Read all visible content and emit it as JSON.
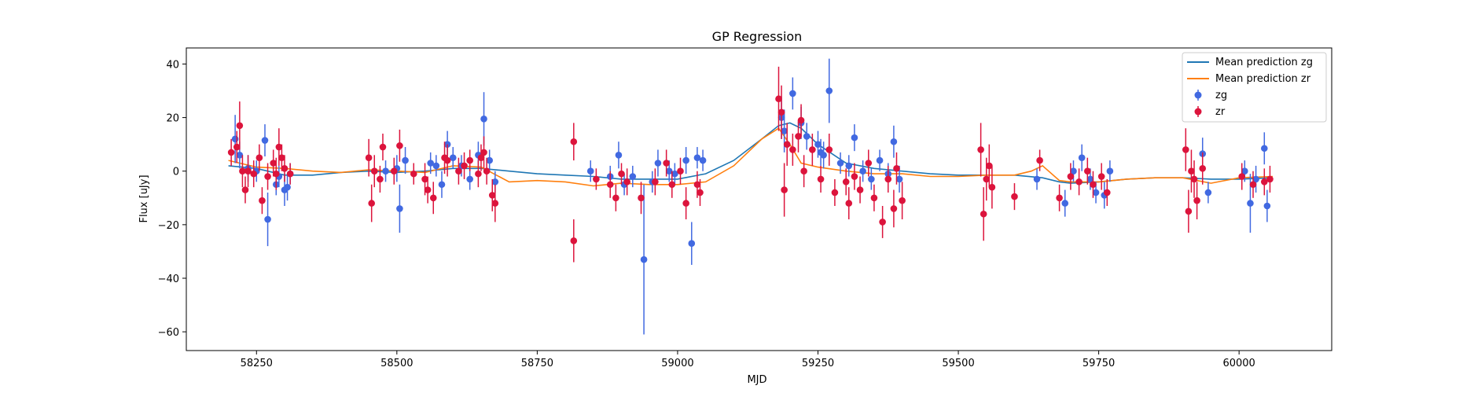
{
  "chart_data": {
    "type": "scatter",
    "title": "GP Regression",
    "xlabel": "MJD",
    "ylabel": "Flux [uJy]",
    "xlim": [
      58125,
      60165
    ],
    "ylim": [
      -67,
      46
    ],
    "xticks": [
      58250,
      58500,
      58750,
      59000,
      59250,
      59500,
      59750,
      60000
    ],
    "yticks": [
      -60,
      -40,
      -20,
      0,
      20,
      40
    ],
    "legend_position": "top-right",
    "grid": false,
    "lines": [
      {
        "name": "Mean prediction zg",
        "color": "#1f77b4",
        "x": [
          58200,
          58250,
          58300,
          58350,
          58400,
          58450,
          58500,
          58550,
          58600,
          58650,
          58700,
          58750,
          58800,
          58850,
          58900,
          58950,
          59000,
          59050,
          59100,
          59150,
          59180,
          59200,
          59220,
          59250,
          59300,
          59350,
          59400,
          59450,
          59500,
          59550,
          59600,
          59650,
          59680,
          59700,
          59750,
          59800,
          59850,
          59900,
          59950,
          60000,
          60060
        ],
        "y": [
          2,
          1,
          -1.5,
          -1.5,
          -0.5,
          0,
          -0.5,
          0,
          1,
          1,
          0,
          -1,
          -1.5,
          -2,
          -3,
          -3,
          -3,
          -1,
          4,
          12,
          17,
          18,
          16,
          10,
          3,
          1,
          0,
          -1,
          -1.5,
          -1.5,
          -1.5,
          -2.5,
          -4,
          -4.5,
          -4,
          -3,
          -2.5,
          -2.5,
          -3,
          -3,
          -2.5
        ]
      },
      {
        "name": "Mean prediction zr",
        "color": "#ff7f0e",
        "x": [
          58200,
          58250,
          58300,
          58350,
          58400,
          58450,
          58500,
          58550,
          58600,
          58650,
          58700,
          58750,
          58800,
          58850,
          58900,
          58950,
          59000,
          59050,
          59100,
          59150,
          59180,
          59200,
          59220,
          59250,
          59300,
          59350,
          59400,
          59450,
          59500,
          59550,
          59600,
          59630,
          59650,
          59680,
          59700,
          59750,
          59800,
          59850,
          59900,
          59950,
          60000,
          60060
        ],
        "y": [
          4,
          1.5,
          1,
          0,
          -0.5,
          0.5,
          0,
          -0.5,
          2,
          1.5,
          -4,
          -3.5,
          -4,
          -5.5,
          -4.5,
          -5,
          -5,
          -4,
          2,
          12,
          16,
          10,
          3,
          1.5,
          0,
          -1,
          -1,
          -2,
          -2,
          -1.5,
          -1.5,
          0,
          2,
          -3.5,
          -4,
          -4,
          -3,
          -2.5,
          -2.5,
          -4.5,
          -2.5,
          -2
        ]
      }
    ],
    "series": [
      {
        "name": "zg",
        "color": "#4169e1",
        "points": [
          [
            58212,
            12,
            9
          ],
          [
            58220,
            6,
            5
          ],
          [
            58235,
            1,
            5
          ],
          [
            58250,
            0,
            4
          ],
          [
            58265,
            11.5,
            6
          ],
          [
            58270,
            -18,
            10
          ],
          [
            58285,
            -5,
            4
          ],
          [
            58290,
            -2,
            4
          ],
          [
            58300,
            -7,
            6
          ],
          [
            58305,
            -6,
            5
          ],
          [
            58310,
            -1,
            4
          ],
          [
            58480,
            0,
            4
          ],
          [
            58500,
            1,
            5
          ],
          [
            58505,
            -14,
            9
          ],
          [
            58515,
            4,
            5
          ],
          [
            58560,
            3,
            4
          ],
          [
            58570,
            2,
            4
          ],
          [
            58580,
            -5,
            5
          ],
          [
            58590,
            10,
            5
          ],
          [
            58600,
            5,
            4
          ],
          [
            58615,
            2,
            4
          ],
          [
            58630,
            -3,
            4
          ],
          [
            58645,
            6,
            5
          ],
          [
            58655,
            19.5,
            10
          ],
          [
            58665,
            4,
            4
          ],
          [
            58675,
            -4,
            4
          ],
          [
            58845,
            0,
            4
          ],
          [
            58880,
            -2,
            4
          ],
          [
            58895,
            6,
            5
          ],
          [
            58905,
            -5,
            4
          ],
          [
            58920,
            -2,
            4
          ],
          [
            58940,
            -33,
            28
          ],
          [
            58955,
            -4,
            4
          ],
          [
            58965,
            3,
            5
          ],
          [
            58985,
            0,
            4
          ],
          [
            58995,
            -1,
            4
          ],
          [
            59015,
            4,
            5
          ],
          [
            59025,
            -27,
            8
          ],
          [
            59035,
            5,
            4
          ],
          [
            59045,
            4,
            4
          ],
          [
            59185,
            20,
            8
          ],
          [
            59190,
            15,
            8
          ],
          [
            59205,
            29,
            6
          ],
          [
            59220,
            18,
            6
          ],
          [
            59230,
            13,
            5
          ],
          [
            59250,
            10,
            5
          ],
          [
            59255,
            7,
            5
          ],
          [
            59260,
            6,
            5
          ],
          [
            59270,
            30,
            12
          ],
          [
            59290,
            3,
            4
          ],
          [
            59305,
            2,
            4
          ],
          [
            59315,
            12.5,
            5
          ],
          [
            59330,
            0,
            4
          ],
          [
            59345,
            -3,
            4
          ],
          [
            59360,
            4,
            4
          ],
          [
            59375,
            -1,
            4
          ],
          [
            59385,
            11,
            6
          ],
          [
            59395,
            -3,
            5
          ],
          [
            59640,
            -3,
            4
          ],
          [
            59690,
            -12,
            5
          ],
          [
            59705,
            0,
            4
          ],
          [
            59720,
            5,
            5
          ],
          [
            59735,
            -3,
            4
          ],
          [
            59745,
            -8,
            4
          ],
          [
            59760,
            -9,
            5
          ],
          [
            59770,
            0,
            4
          ],
          [
            59935,
            6.5,
            6
          ],
          [
            59945,
            -8,
            4
          ],
          [
            60010,
            0,
            4
          ],
          [
            60020,
            -12,
            11
          ],
          [
            60030,
            -3,
            5
          ],
          [
            60045,
            8.5,
            6
          ],
          [
            60050,
            -13,
            6
          ]
        ]
      },
      {
        "name": "zr",
        "color": "#dc143c",
        "points": [
          [
            58205,
            7,
            5
          ],
          [
            58215,
            9,
            6
          ],
          [
            58220,
            17,
            9
          ],
          [
            58225,
            0,
            6
          ],
          [
            58230,
            -7,
            5
          ],
          [
            58235,
            0,
            6
          ],
          [
            58245,
            -1,
            5
          ],
          [
            58255,
            5,
            5
          ],
          [
            58260,
            -11,
            5
          ],
          [
            58270,
            -2,
            5
          ],
          [
            58280,
            3,
            5
          ],
          [
            58285,
            -1,
            6
          ],
          [
            58290,
            9,
            7
          ],
          [
            58295,
            5,
            5
          ],
          [
            58300,
            1,
            5
          ],
          [
            58310,
            -1,
            4
          ],
          [
            58450,
            5,
            7
          ],
          [
            58455,
            -12,
            7
          ],
          [
            58460,
            0,
            6
          ],
          [
            58470,
            -3,
            5
          ],
          [
            58475,
            9,
            5
          ],
          [
            58495,
            0,
            5
          ],
          [
            58505,
            9.5,
            6
          ],
          [
            58530,
            -1,
            4
          ],
          [
            58550,
            -3,
            6
          ],
          [
            58555,
            -7,
            5
          ],
          [
            58565,
            -10,
            6
          ],
          [
            58585,
            5,
            6
          ],
          [
            58590,
            4,
            6
          ],
          [
            58610,
            0,
            5
          ],
          [
            58620,
            2,
            5
          ],
          [
            58630,
            4,
            4
          ],
          [
            58645,
            -1,
            5
          ],
          [
            58650,
            5,
            5
          ],
          [
            58655,
            7,
            6
          ],
          [
            58660,
            0,
            5
          ],
          [
            58670,
            -9,
            6
          ],
          [
            58675,
            -12,
            7
          ],
          [
            58815,
            11,
            7
          ],
          [
            58815,
            -26,
            8
          ],
          [
            58855,
            -3,
            4
          ],
          [
            58880,
            -5,
            5
          ],
          [
            58890,
            -10,
            5
          ],
          [
            58900,
            -1,
            4
          ],
          [
            58910,
            -4,
            5
          ],
          [
            58935,
            -10,
            6
          ],
          [
            58960,
            -4,
            5
          ],
          [
            58980,
            3,
            5
          ],
          [
            58990,
            -5,
            5
          ],
          [
            59005,
            0,
            5
          ],
          [
            59015,
            -12,
            6
          ],
          [
            59035,
            -5,
            5
          ],
          [
            59040,
            -8,
            5
          ],
          [
            59180,
            27,
            12
          ],
          [
            59185,
            22,
            10
          ],
          [
            59190,
            -7,
            10
          ],
          [
            59195,
            10,
            8
          ],
          [
            59205,
            8,
            6
          ],
          [
            59215,
            13,
            6
          ],
          [
            59220,
            19,
            6
          ],
          [
            59225,
            0,
            6
          ],
          [
            59240,
            8,
            6
          ],
          [
            59255,
            -3,
            5
          ],
          [
            59270,
            8,
            6
          ],
          [
            59280,
            -8,
            5
          ],
          [
            59300,
            -4,
            5
          ],
          [
            59305,
            -12,
            6
          ],
          [
            59315,
            -2,
            5
          ],
          [
            59325,
            -7,
            5
          ],
          [
            59340,
            3,
            5
          ],
          [
            59350,
            -10,
            5
          ],
          [
            59365,
            -19,
            6
          ],
          [
            59375,
            -3,
            5
          ],
          [
            59385,
            -14,
            7
          ],
          [
            59390,
            1,
            6
          ],
          [
            59400,
            -11,
            7
          ],
          [
            59540,
            8,
            10
          ],
          [
            59545,
            -16,
            10
          ],
          [
            59550,
            -3,
            8
          ],
          [
            59555,
            2,
            8
          ],
          [
            59560,
            -6,
            8
          ],
          [
            59600,
            -9.5,
            5
          ],
          [
            59645,
            4,
            4
          ],
          [
            59680,
            -10,
            5
          ],
          [
            59700,
            -2,
            5
          ],
          [
            59715,
            -4,
            5
          ],
          [
            59730,
            0,
            5
          ],
          [
            59740,
            -5,
            5
          ],
          [
            59755,
            -2,
            5
          ],
          [
            59765,
            -8,
            5
          ],
          [
            59905,
            8,
            8
          ],
          [
            59910,
            -15,
            8
          ],
          [
            59915,
            0,
            8
          ],
          [
            59920,
            -3,
            7
          ],
          [
            59925,
            -11,
            7
          ],
          [
            59935,
            1,
            6
          ],
          [
            60005,
            -2,
            5
          ],
          [
            60025,
            -5,
            5
          ],
          [
            60045,
            -4,
            5
          ],
          [
            60055,
            -3,
            5
          ]
        ]
      }
    ]
  }
}
